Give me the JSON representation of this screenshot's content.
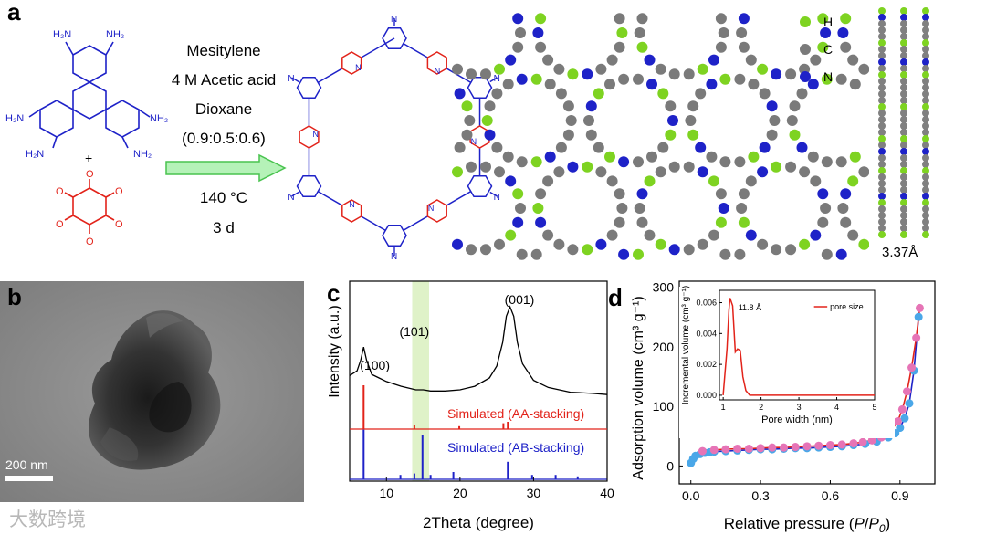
{
  "panels": {
    "a": "a",
    "b": "b",
    "c": "c",
    "d": "d"
  },
  "panel_a": {
    "reagents": {
      "nh2": "NH₂",
      "h2n": "H₂N",
      "plus": "+",
      "o": "O"
    },
    "conditions": [
      "Mesitylene",
      "4 M Acetic acid",
      "Dioxane",
      "(0.9:0.5:0.6)",
      "140 °C",
      "3 d"
    ],
    "legend": [
      {
        "symbol": "H",
        "color": "#7ed321"
      },
      {
        "symbol": "C",
        "color": "#7a7a7a"
      },
      {
        "symbol": "N",
        "color": "#1e22c8"
      }
    ],
    "n_label": "N",
    "interlayer": "3.37Å"
  },
  "panel_b": {
    "scale_bar": "200 nm"
  },
  "chart_data": [
    {
      "type": "line",
      "panel": "c",
      "xlabel": "2Theta (degree)",
      "ylabel": "Intensity (a.u.)",
      "xlim": [
        5,
        40
      ],
      "xticks": [
        10,
        20,
        30,
        40
      ],
      "highlight": {
        "from": 13.5,
        "to": 15.8,
        "label": "(101)"
      },
      "peak_labels": [
        {
          "text": "(100)",
          "x": 6.9
        },
        {
          "text": "(001)",
          "x": 26.8
        }
      ],
      "series": [
        {
          "name": "",
          "color": "#000000",
          "x": [
            5.0,
            6.0,
            6.5,
            6.9,
            7.3,
            8.0,
            9.0,
            10.0,
            12.0,
            14.0,
            15.0,
            16.0,
            18.0,
            20.0,
            22.0,
            24.0,
            25.0,
            25.8,
            26.3,
            26.8,
            27.3,
            27.8,
            28.5,
            30.0,
            32.0,
            35.0,
            38.0,
            40.0
          ],
          "y": [
            0.42,
            0.46,
            0.55,
            0.66,
            0.55,
            0.43,
            0.4,
            0.37,
            0.33,
            0.3,
            0.3,
            0.29,
            0.29,
            0.3,
            0.33,
            0.4,
            0.5,
            0.7,
            0.92,
            1.0,
            0.92,
            0.7,
            0.52,
            0.38,
            0.32,
            0.28,
            0.27,
            0.26
          ]
        },
        {
          "name": "Simulated (AA-stacking)",
          "color": "#e2231a",
          "x": [
            6.9,
            13.8,
            19.9,
            25.9,
            26.5
          ],
          "y": [
            0.3,
            0.03,
            0.02,
            0.04,
            0.05
          ]
        },
        {
          "name": "Simulated (AB-stacking)",
          "color": "#1e22c8",
          "x": [
            6.9,
            11.9,
            13.8,
            14.9,
            16.0,
            19.1,
            26.5,
            29.8,
            33.0,
            36.0
          ],
          "y": [
            0.34,
            0.03,
            0.04,
            0.3,
            0.03,
            0.05,
            0.12,
            0.03,
            0.03,
            0.02
          ]
        }
      ]
    },
    {
      "type": "scatter",
      "panel": "d",
      "xlabel": "Relative pressure (P/P0)",
      "xlabel_parts": [
        "Relative pressure (",
        "P",
        "/",
        "P",
        "0",
        ")"
      ],
      "ylabel": "Adsorption volume (cm³ g⁻¹)",
      "xlim": [
        -0.05,
        1.05
      ],
      "ylim": [
        -30,
        310
      ],
      "xticks": [
        "0.0",
        "0.3",
        "0.6",
        "0.9"
      ],
      "yticks": [
        "0",
        "100",
        "200",
        "300"
      ],
      "series": [
        {
          "name": "",
          "color": "#4aa7e8",
          "x": [
            0.0,
            0.01,
            0.02,
            0.04,
            0.06,
            0.08,
            0.1,
            0.15,
            0.2,
            0.25,
            0.3,
            0.35,
            0.4,
            0.45,
            0.5,
            0.55,
            0.6,
            0.65,
            0.7,
            0.75,
            0.8,
            0.85,
            0.88,
            0.9,
            0.92,
            0.94,
            0.96,
            0.98
          ],
          "y": [
            5,
            12,
            17,
            20,
            22,
            23,
            24,
            25,
            26,
            27,
            28,
            28,
            29,
            30,
            30,
            31,
            32,
            33,
            35,
            37,
            41,
            48,
            55,
            64,
            80,
            105,
            160,
            250
          ]
        },
        {
          "name": "",
          "color": "#e674b6",
          "x": [
            0.985,
            0.97,
            0.95,
            0.93,
            0.91,
            0.89,
            0.86,
            0.82,
            0.78,
            0.74,
            0.7,
            0.65,
            0.6,
            0.55,
            0.5,
            0.45,
            0.4,
            0.35,
            0.3,
            0.25,
            0.2,
            0.15,
            0.1,
            0.05
          ],
          "y": [
            265,
            215,
            165,
            125,
            95,
            75,
            58,
            48,
            43,
            40,
            38,
            36,
            35,
            34,
            33,
            32,
            31,
            31,
            30,
            29,
            29,
            28,
            27,
            25
          ]
        }
      ],
      "inset": {
        "type": "line",
        "xlabel": "Pore width (nm)",
        "ylabel": "Incremental volume (cm³ g⁻¹)",
        "xlim": [
          0.9,
          5
        ],
        "ylim": [
          -0.0003,
          0.0068
        ],
        "xticks": [
          "1",
          "2",
          "3",
          "4",
          "5"
        ],
        "yticks": [
          "0.000",
          "0.002",
          "0.004",
          "0.006"
        ],
        "annotation": "11.8 Å",
        "series": [
          {
            "name": "pore size",
            "color": "#e2231a",
            "x": [
              1.0,
              1.1,
              1.15,
              1.18,
              1.25,
              1.32,
              1.38,
              1.45,
              1.52,
              1.6,
              1.7,
              1.8,
              2.0,
              3.0,
              4.0,
              5.0
            ],
            "y": [
              0.0,
              0.003,
              0.0055,
              0.0063,
              0.0058,
              0.0028,
              0.003,
              0.0029,
              0.0012,
              0.0003,
              0.0,
              0.0,
              0.0,
              0.0,
              0.0,
              0.0
            ]
          }
        ]
      }
    }
  ],
  "watermark": "大数跨境"
}
